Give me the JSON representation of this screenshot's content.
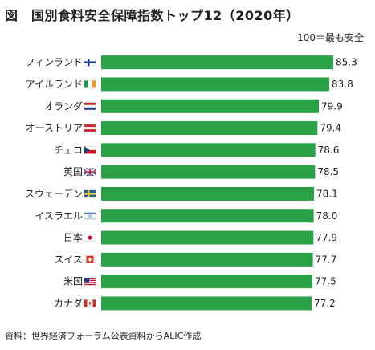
{
  "title": "図　国別食料安全保障指数トップ12（2020年）",
  "note": "100＝最も安全",
  "source": "資料：世界経済フォーラム公表資料からALIC作成",
  "colors": {
    "bar": "#2aa146"
  },
  "chart_data": {
    "type": "bar",
    "orientation": "horizontal",
    "categories": [
      "フィンランド",
      "アイルランド",
      "オランダ",
      "オーストリア",
      "チェコ",
      "英国",
      "スウェーデン",
      "イスラエル",
      "日本",
      "スイス",
      "米国",
      "カナダ"
    ],
    "flag_icons": [
      "finland-flag-icon",
      "ireland-flag-icon",
      "netherlands-flag-icon",
      "austria-flag-icon",
      "czech-flag-icon",
      "uk-flag-icon",
      "sweden-flag-icon",
      "israel-flag-icon",
      "japan-flag-icon",
      "switzerland-flag-icon",
      "usa-flag-icon",
      "canada-flag-icon"
    ],
    "values": [
      85.3,
      83.8,
      79.9,
      79.4,
      78.6,
      78.5,
      78.1,
      78.0,
      77.9,
      77.7,
      77.5,
      77.2
    ],
    "value_labels": [
      "85.3",
      "83.8",
      "79.9",
      "79.4",
      "78.6",
      "78.5",
      "78.1",
      "78.0",
      "77.9",
      "77.7",
      "77.5",
      "77.2"
    ],
    "title": "図　国別食料安全保障指数トップ12（2020年）",
    "xlabel": "",
    "ylabel": "",
    "grid": false
  }
}
